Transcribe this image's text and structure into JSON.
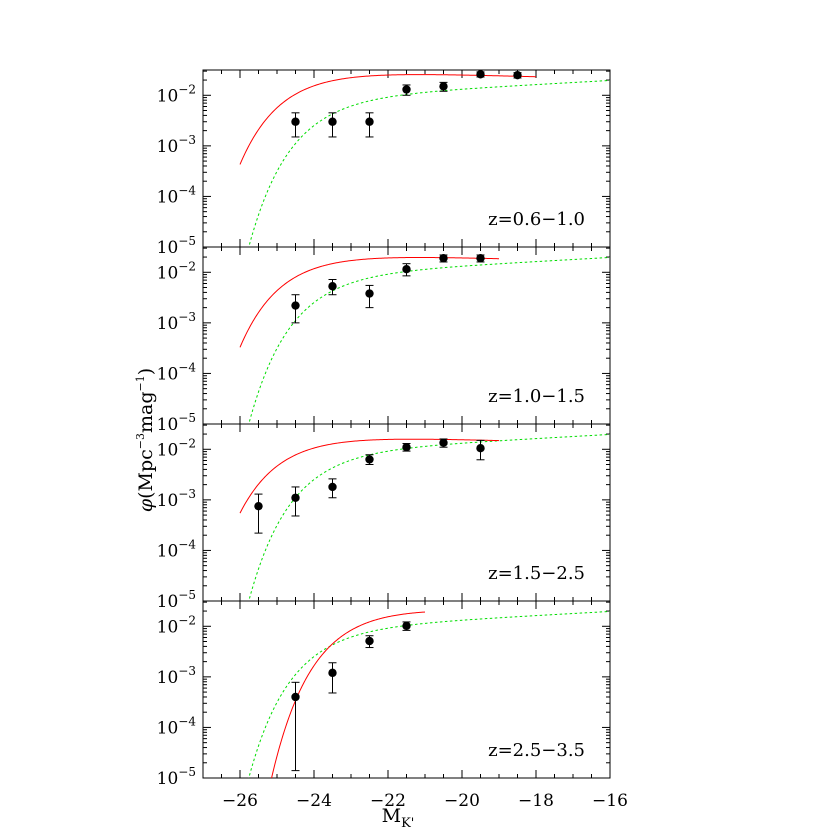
{
  "chart_data": {
    "type": "scatter",
    "xlabel": "M_K'",
    "xlabel_main": "M",
    "xlabel_sub": "K'",
    "ylabel": "φ(Mpc⁻³mag⁻¹)",
    "ylabel_parts": {
      "phi": "φ",
      "open": "(Mpc",
      "exp1": "−3",
      "mid": "mag",
      "exp2": "−1",
      "close": ")"
    },
    "xlim": [
      -27,
      -16
    ],
    "x_ticks": [
      -26,
      -24,
      -22,
      -20,
      -18,
      -16
    ],
    "x_tick_labels": [
      "−26",
      "−24",
      "−22",
      "−20",
      "−18",
      "−16"
    ],
    "ylim_log10": [
      -5,
      -1.5
    ],
    "y_tick_labels": [
      {
        "base": "10",
        "exp": "−2"
      },
      {
        "base": "10",
        "exp": "−3"
      },
      {
        "base": "10",
        "exp": "−4"
      },
      {
        "base": "10",
        "exp": "−5"
      }
    ],
    "colors": {
      "model_red": "#ff0000",
      "model_green": "#00dd00",
      "points": "#000000"
    },
    "panels": [
      {
        "label": "z=0.6−1.0",
        "points": [
          {
            "x": -24.5,
            "y": 0.003,
            "ylo": 0.0015,
            "yhi": 0.0045
          },
          {
            "x": -23.5,
            "y": 0.003,
            "ylo": 0.0015,
            "yhi": 0.0045
          },
          {
            "x": -22.5,
            "y": 0.003,
            "ylo": 0.0015,
            "yhi": 0.0045
          },
          {
            "x": -21.5,
            "y": 0.013,
            "ylo": 0.01,
            "yhi": 0.016
          },
          {
            "x": -20.5,
            "y": 0.015,
            "ylo": 0.012,
            "yhi": 0.018
          },
          {
            "x": -19.5,
            "y": 0.026,
            "ylo": 0.023,
            "yhi": 0.029
          },
          {
            "x": -18.5,
            "y": 0.025,
            "ylo": 0.022,
            "yhi": 0.028
          }
        ],
        "red": {
          "phi_star": 0.034,
          "m_star": -24.4,
          "alpha": -0.95,
          "xmin": -26,
          "xmax": -18
        },
        "green": {
          "phi_star": 0.0105,
          "m_star": -23.7,
          "alpha": -1.1,
          "xmin": -26,
          "xmax": -16
        }
      },
      {
        "label": "z=1.0−1.5",
        "points": [
          {
            "x": -24.5,
            "y": 0.0022,
            "ylo": 0.001,
            "yhi": 0.0036
          },
          {
            "x": -23.5,
            "y": 0.0053,
            "ylo": 0.0036,
            "yhi": 0.0072
          },
          {
            "x": -22.5,
            "y": 0.0038,
            "ylo": 0.002,
            "yhi": 0.0055
          },
          {
            "x": -21.5,
            "y": 0.0115,
            "ylo": 0.0085,
            "yhi": 0.0148
          },
          {
            "x": -20.5,
            "y": 0.019,
            "ylo": 0.016,
            "yhi": 0.022
          },
          {
            "x": -19.5,
            "y": 0.019,
            "ylo": 0.016,
            "yhi": 0.022
          }
        ],
        "red": {
          "phi_star": 0.026,
          "m_star": -24.4,
          "alpha": -0.95,
          "xmin": -26,
          "xmax": -19
        },
        "green": {
          "phi_star": 0.0105,
          "m_star": -23.7,
          "alpha": -1.1,
          "xmin": -26,
          "xmax": -16
        }
      },
      {
        "label": "z=1.5−2.5",
        "points": [
          {
            "x": -25.5,
            "y": 0.00075,
            "ylo": 0.00022,
            "yhi": 0.0013
          },
          {
            "x": -24.5,
            "y": 0.0011,
            "ylo": 0.00048,
            "yhi": 0.0018
          },
          {
            "x": -23.5,
            "y": 0.0018,
            "ylo": 0.0011,
            "yhi": 0.0026
          },
          {
            "x": -22.5,
            "y": 0.0063,
            "ylo": 0.005,
            "yhi": 0.0078
          },
          {
            "x": -21.5,
            "y": 0.011,
            "ylo": 0.0092,
            "yhi": 0.013
          },
          {
            "x": -20.5,
            "y": 0.0135,
            "ylo": 0.011,
            "yhi": 0.016
          },
          {
            "x": -19.5,
            "y": 0.0105,
            "ylo": 0.0062,
            "yhi": 0.015
          }
        ],
        "red": {
          "phi_star": 0.021,
          "m_star": -24.6,
          "alpha": -0.95,
          "xmin": -26,
          "xmax": -19
        },
        "green": {
          "phi_star": 0.0105,
          "m_star": -23.7,
          "alpha": -1.1,
          "xmin": -26,
          "xmax": -16
        }
      },
      {
        "label": "z=2.5−3.5",
        "points": [
          {
            "x": -24.5,
            "y": 0.0004,
            "ylo": 1.4e-05,
            "yhi": 0.00078
          },
          {
            "x": -23.5,
            "y": 0.0012,
            "ylo": 0.00048,
            "yhi": 0.0019
          },
          {
            "x": -22.5,
            "y": 0.0051,
            "ylo": 0.0038,
            "yhi": 0.0065
          },
          {
            "x": -21.5,
            "y": 0.0102,
            "ylo": 0.0083,
            "yhi": 0.0122
          }
        ],
        "red": {
          "phi_star": 0.027,
          "m_star": -22.9,
          "alpha": -0.95,
          "xmin": -25.6,
          "xmax": -21
        },
        "green": {
          "phi_star": 0.0105,
          "m_star": -23.7,
          "alpha": -1.1,
          "xmin": -26,
          "xmax": -16
        }
      }
    ]
  }
}
